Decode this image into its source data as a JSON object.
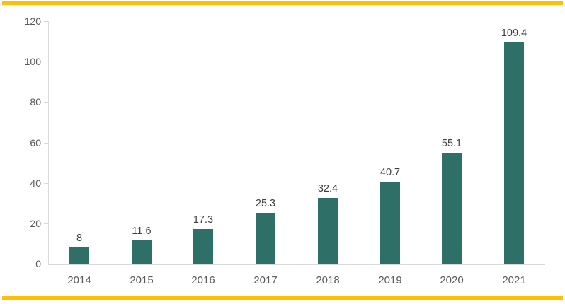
{
  "chart_data": {
    "type": "bar",
    "title": "",
    "xlabel": "",
    "ylabel": "",
    "categories": [
      "2014",
      "2015",
      "2016",
      "2017",
      "2018",
      "2019",
      "2020",
      "2021"
    ],
    "values": [
      8,
      11.6,
      17.3,
      25.3,
      32.4,
      40.7,
      55.1,
      109.4
    ],
    "data_labels": [
      "8",
      "11.6",
      "17.3",
      "25.3",
      "32.4",
      "40.7",
      "55.1",
      "109.4"
    ],
    "ylim": [
      0,
      120
    ],
    "y_ticks": [
      0,
      20,
      40,
      60,
      80,
      100,
      120
    ],
    "grid": false,
    "legend": false,
    "colors": {
      "bar": "#2E6F68",
      "axis_line": "#D9D9D9",
      "axis_tick_label": "#595959",
      "data_label": "#3F3F3F",
      "accent_line": "#FFC000",
      "background": "#FFFFFF"
    }
  }
}
